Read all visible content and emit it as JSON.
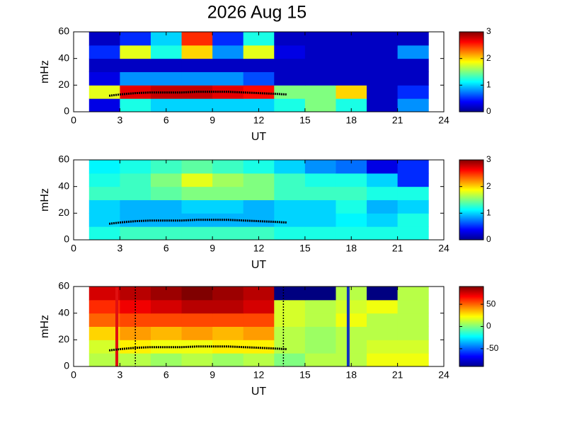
{
  "chart_data": [
    {
      "type": "heatmap",
      "title": "2026 Aug 15",
      "xlabel": "UT",
      "ylabel": "mHz",
      "xlim": [
        0,
        24
      ],
      "xticks": [
        0,
        3,
        6,
        9,
        12,
        15,
        18,
        21,
        24
      ],
      "ylim": [
        0,
        60
      ],
      "yticks": [
        0,
        20,
        40,
        60
      ],
      "clim": [
        0,
        3
      ],
      "cticks": [
        0,
        1,
        2,
        3
      ],
      "x": [
        2,
        4,
        6,
        8,
        10,
        12,
        14,
        16,
        18,
        20,
        22
      ],
      "y": [
        5,
        15,
        25,
        35,
        45,
        55
      ],
      "z": [
        [
          0.3,
          1.2,
          1.0,
          1.0,
          1.0,
          1.0,
          1.2,
          1.5,
          1.2,
          0.2,
          0.8
        ],
        [
          1.8,
          2.7,
          2.8,
          2.8,
          2.7,
          2.6,
          1.5,
          1.5,
          2.0,
          0.2,
          0.5
        ],
        [
          0.3,
          0.8,
          0.8,
          0.8,
          0.8,
          0.6,
          0.2,
          0.2,
          0.2,
          0.2,
          0.2
        ],
        [
          0.2,
          0.2,
          0.2,
          0.2,
          0.2,
          0.2,
          0.2,
          0.2,
          0.2,
          0.2,
          0.2
        ],
        [
          0.5,
          1.8,
          1.2,
          2.0,
          0.8,
          1.8,
          0.3,
          0.2,
          0.2,
          0.2,
          0.8
        ],
        [
          0.2,
          0.5,
          1.0,
          2.5,
          0.5,
          1.2,
          0.2,
          0.2,
          0.2,
          0.2,
          0.2
        ]
      ],
      "trace": {
        "color": "#000000",
        "x": [
          2.3,
          3,
          4,
          5,
          6,
          7,
          8,
          9,
          10,
          11,
          12,
          13,
          13.8
        ],
        "y": [
          12,
          13,
          14,
          14.5,
          14.5,
          14.5,
          15,
          15,
          15,
          14.5,
          14,
          13.5,
          13
        ]
      }
    },
    {
      "type": "heatmap",
      "xlabel": "UT",
      "ylabel": "mHz",
      "xlim": [
        0,
        24
      ],
      "xticks": [
        0,
        3,
        6,
        9,
        12,
        15,
        18,
        21,
        24
      ],
      "ylim": [
        0,
        60
      ],
      "yticks": [
        0,
        20,
        40,
        60
      ],
      "clim": [
        0,
        3
      ],
      "cticks": [
        0,
        1,
        2,
        3
      ],
      "x": [
        2,
        4,
        6,
        8,
        10,
        12,
        14,
        16,
        18,
        20,
        22
      ],
      "y": [
        5,
        15,
        25,
        35,
        45,
        55
      ],
      "z": [
        [
          1.2,
          1.3,
          1.3,
          1.3,
          1.3,
          1.3,
          1.2,
          1.2,
          1.2,
          1.2,
          1.2
        ],
        [
          1.0,
          0.9,
          0.9,
          0.9,
          0.9,
          0.9,
          1.0,
          1.0,
          1.1,
          1.0,
          1.2
        ],
        [
          1.0,
          0.9,
          0.9,
          1.0,
          1.0,
          0.9,
          1.0,
          1.0,
          1.2,
          0.9,
          1.0
        ],
        [
          1.3,
          1.3,
          1.4,
          1.5,
          1.5,
          1.5,
          1.3,
          1.3,
          1.3,
          1.2,
          1.2
        ],
        [
          1.2,
          1.3,
          1.5,
          1.8,
          1.6,
          1.5,
          1.3,
          1.2,
          1.2,
          1.0,
          0.5
        ],
        [
          1.1,
          1.2,
          1.3,
          1.4,
          1.3,
          1.2,
          1.0,
          0.8,
          0.7,
          0.3,
          0.5
        ]
      ],
      "trace": {
        "color": "#000000",
        "x": [
          2.3,
          3,
          4,
          5,
          6,
          7,
          8,
          9,
          10,
          11,
          12,
          13,
          13.8
        ],
        "y": [
          12,
          13,
          14,
          14.5,
          14.5,
          14.5,
          15,
          15,
          15,
          14.5,
          14,
          13.5,
          13
        ]
      }
    },
    {
      "type": "heatmap",
      "xlabel": "UT",
      "ylabel": "mHz",
      "xlim": [
        0,
        24
      ],
      "xticks": [
        0,
        3,
        6,
        9,
        12,
        15,
        18,
        21,
        24
      ],
      "ylim": [
        0,
        60
      ],
      "yticks": [
        0,
        20,
        40,
        60
      ],
      "clim": [
        -90,
        90
      ],
      "cticks": [
        -50,
        0,
        50
      ],
      "x": [
        2,
        4,
        6,
        8,
        10,
        12,
        14,
        16,
        18,
        20,
        22
      ],
      "y": [
        5,
        15,
        25,
        35,
        45,
        55
      ],
      "z": [
        [
          10,
          10,
          5,
          10,
          5,
          10,
          0,
          10,
          10,
          20,
          20
        ],
        [
          15,
          25,
          20,
          20,
          25,
          25,
          10,
          5,
          10,
          15,
          15
        ],
        [
          30,
          40,
          35,
          40,
          35,
          40,
          10,
          5,
          10,
          10,
          10
        ],
        [
          50,
          55,
          55,
          55,
          55,
          55,
          15,
          10,
          20,
          10,
          10
        ],
        [
          60,
          70,
          75,
          80,
          80,
          75,
          15,
          10,
          15,
          20,
          10
        ],
        [
          75,
          80,
          85,
          90,
          85,
          80,
          -90,
          -90,
          10,
          -90,
          10
        ]
      ],
      "trace": {
        "color": "#000000",
        "x": [
          2.3,
          3,
          4,
          5,
          6,
          7,
          8,
          9,
          10,
          11,
          12,
          13,
          13.8
        ],
        "y": [
          12,
          13,
          14,
          14.5,
          14.5,
          14.5,
          15,
          15,
          15,
          14.5,
          14,
          13.5,
          13
        ]
      },
      "lines": [
        {
          "x": 2.8,
          "color": "#e01010",
          "style": "solid"
        },
        {
          "x": 17.8,
          "color": "#1030c0",
          "style": "solid"
        },
        {
          "x": 4,
          "color": "#000000",
          "style": "dotted"
        },
        {
          "x": 13.6,
          "color": "#000000",
          "style": "dotted"
        }
      ]
    }
  ]
}
